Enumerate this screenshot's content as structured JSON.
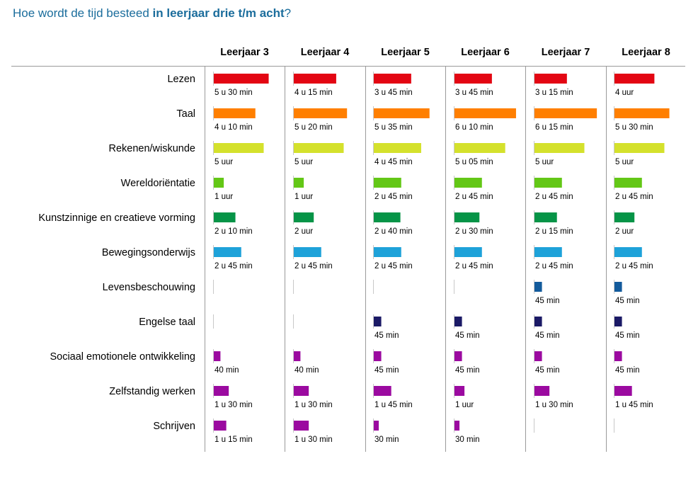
{
  "title": {
    "prefix": "Hoe wordt de tijd besteed ",
    "bold": "in leerjaar drie t/m acht",
    "suffix": "?"
  },
  "chart_data": {
    "type": "bar",
    "orientation": "horizontal",
    "unit": "minutes per week",
    "columns": [
      "Leerjaar 3",
      "Leerjaar 4",
      "Leerjaar 5",
      "Leerjaar 6",
      "Leerjaar 7",
      "Leerjaar 8"
    ],
    "rows": [
      {
        "name": "Lezen",
        "color": "#e30613",
        "values": [
          330,
          255,
          225,
          225,
          195,
          240
        ],
        "labels": [
          "5 u 30 min",
          "4 u 15 min",
          "3 u 45 min",
          "3 u 45 min",
          "3 u 15 min",
          "4 uur"
        ]
      },
      {
        "name": "Taal",
        "color": "#ff7f00",
        "values": [
          250,
          320,
          335,
          370,
          375,
          330
        ],
        "labels": [
          "4 u 10 min",
          "5 u 20 min",
          "5 u 35 min",
          "6 u 10 min",
          "6 u 15 min",
          "5 u 30 min"
        ]
      },
      {
        "name": "Rekenen/wiskunde",
        "color": "#d4e12c",
        "values": [
          300,
          300,
          285,
          305,
          300,
          300
        ],
        "labels": [
          "5 uur",
          "5 uur",
          "4 u 45 min",
          "5 u 05 min",
          "5 uur",
          "5 uur"
        ]
      },
      {
        "name": "Wereldoriëntatie",
        "color": "#63c716",
        "values": [
          60,
          60,
          165,
          165,
          165,
          165
        ],
        "labels": [
          "1 uur",
          "1 uur",
          "2 u 45 min",
          "2 u 45 min",
          "2 u 45 min",
          "2 u 45 min"
        ]
      },
      {
        "name": "Kunstzinnige en creatieve vorming",
        "color": "#069447",
        "values": [
          130,
          120,
          160,
          150,
          135,
          120
        ],
        "labels": [
          "2 u 10 min",
          "2 uur",
          "2 u 40 min",
          "2 u 30 min",
          "2 u 15 min",
          "2 uur"
        ]
      },
      {
        "name": "Bewegingsonderwijs",
        "color": "#1ea2d9",
        "values": [
          165,
          165,
          165,
          165,
          165,
          165
        ],
        "labels": [
          "2 u 45 min",
          "2 u 45 min",
          "2 u 45 min",
          "2 u 45 min",
          "2 u 45 min",
          "2 u 45 min"
        ]
      },
      {
        "name": "Levensbeschouwing",
        "color": "#135b9c",
        "values": [
          0,
          0,
          0,
          0,
          45,
          45
        ],
        "labels": [
          "",
          "",
          "",
          "",
          "45 min",
          "45 min"
        ]
      },
      {
        "name": "Engelse taal",
        "color": "#1b1a66",
        "values": [
          0,
          0,
          45,
          45,
          45,
          45
        ],
        "labels": [
          "",
          "",
          "45 min",
          "45 min",
          "45 min",
          "45 min"
        ]
      },
      {
        "name": "Sociaal emotionele ontwikkeling",
        "color": "#9b0aa0",
        "values": [
          40,
          40,
          45,
          45,
          45,
          45
        ],
        "labels": [
          "40 min",
          "40 min",
          "45 min",
          "45 min",
          "45 min",
          "45 min"
        ]
      },
      {
        "name": "Zelfstandig werken",
        "color": "#9b0aa0",
        "values": [
          90,
          90,
          105,
          60,
          90,
          105
        ],
        "labels": [
          "1 u 30 min",
          "1 u 30 min",
          "1 u 45 min",
          "1 uur",
          "1 u 30 min",
          "1 u 45 min"
        ]
      },
      {
        "name": "Schrijven",
        "color": "#9b0aa0",
        "values": [
          75,
          90,
          30,
          30,
          0,
          0
        ],
        "labels": [
          "1 u 15 min",
          "1 u 30 min",
          "30 min",
          "30 min",
          "",
          ""
        ]
      }
    ]
  }
}
